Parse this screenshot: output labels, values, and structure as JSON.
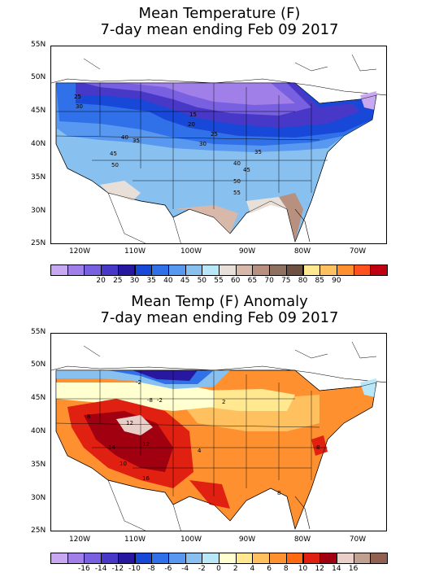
{
  "panels": [
    {
      "title_line1": "Mean Temperature (F)",
      "title_line2": "7-day mean ending Feb 09 2017",
      "lat_labels": [
        "55N",
        "50N",
        "45N",
        "40N",
        "35N",
        "30N",
        "25N"
      ],
      "lon_labels": [
        "120W",
        "110W",
        "100W",
        "90W",
        "80W",
        "70W"
      ],
      "contour_labels": [
        "25",
        "30",
        "15",
        "20",
        "25",
        "40",
        "35",
        "30",
        "45",
        "35",
        "50",
        "40",
        "45",
        "50",
        "55"
      ],
      "colorbar": {
        "colors": [
          "#c8a8f0",
          "#a080e8",
          "#7860e0",
          "#4838c8",
          "#2818a0",
          "#1848d8",
          "#3070e8",
          "#5898f0",
          "#88c0f0",
          "#b8e8f8",
          "#e8e0d8",
          "#d8b8a8",
          "#b89080",
          "#907060",
          "#705040",
          "#ffe890",
          "#ffc060",
          "#ff9030",
          "#ff5020",
          "#c00010"
        ],
        "labels": [
          "20",
          "25",
          "30",
          "35",
          "40",
          "45",
          "50",
          "55",
          "60",
          "65",
          "70",
          "75",
          "80",
          "85",
          "90"
        ]
      }
    },
    {
      "title_line1": "Mean Temp (F) Anomaly",
      "title_line2": "7-day mean ending Feb 09 2017",
      "lat_labels": [
        "55N",
        "50N",
        "45N",
        "40N",
        "35N",
        "30N",
        "25N"
      ],
      "lon_labels": [
        "120W",
        "110W",
        "100W",
        "90W",
        "80W",
        "70W"
      ],
      "contour_labels": [
        "-2",
        "-8",
        "-2",
        "2",
        "8",
        "12",
        "14",
        "12",
        "10",
        "4",
        "16",
        "8",
        "8"
      ],
      "colorbar": {
        "colors": [
          "#c8a8f0",
          "#a080e8",
          "#7860e0",
          "#4838c8",
          "#2818a0",
          "#1848d8",
          "#3070e8",
          "#5898f0",
          "#88c0f0",
          "#b8e8f8",
          "#ffffd0",
          "#ffe890",
          "#ffc060",
          "#ff9030",
          "#ff6a10",
          "#e02010",
          "#a00010",
          "#e8d0c8",
          "#c0a090",
          "#906050"
        ],
        "labels": [
          "-16",
          "-14",
          "-12",
          "-10",
          "-8",
          "-6",
          "-4",
          "-2",
          "0",
          "2",
          "4",
          "6",
          "8",
          "10",
          "12",
          "14",
          "16"
        ]
      }
    }
  ]
}
